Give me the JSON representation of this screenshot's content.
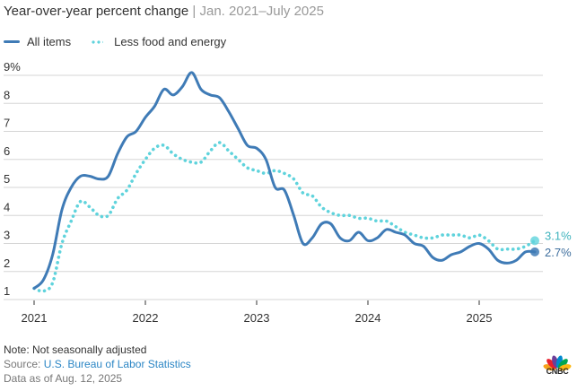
{
  "header": {
    "title": "Year-over-year percent change",
    "separator": "|",
    "subtitle": "Jan. 2021–July 2025"
  },
  "legend": [
    {
      "label": "All items",
      "style": "solid",
      "color": "#3f7bb6"
    },
    {
      "label": "Less food and energy",
      "style": "dotted",
      "color": "#5fd3dc"
    }
  ],
  "chart_data": {
    "type": "line",
    "title": "Year-over-year percent change | Jan. 2021–July 2025",
    "xlabel": "",
    "ylabel": "",
    "ylim": [
      1,
      9
    ],
    "yticks": [
      1,
      2,
      3,
      4,
      5,
      6,
      7,
      8,
      9
    ],
    "ytick_labels": [
      "1",
      "2",
      "3",
      "4",
      "5",
      "6",
      "7",
      "8",
      "9%"
    ],
    "xticks": [
      "2021",
      "2022",
      "2023",
      "2024",
      "2025"
    ],
    "x_start": "2021-01",
    "x_end": "2025-07",
    "grid": true,
    "legend_position": "top-left",
    "series": [
      {
        "name": "All items",
        "color": "#3f7bb6",
        "end_label": "2.7%",
        "values": [
          1.4,
          1.7,
          2.6,
          4.2,
          5.0,
          5.4,
          5.4,
          5.3,
          5.4,
          6.2,
          6.8,
          7.0,
          7.5,
          7.9,
          8.5,
          8.3,
          8.6,
          9.1,
          8.5,
          8.3,
          8.2,
          7.7,
          7.1,
          6.5,
          6.4,
          6.0,
          5.0,
          4.9,
          4.0,
          3.0,
          3.2,
          3.7,
          3.7,
          3.2,
          3.1,
          3.4,
          3.1,
          3.2,
          3.5,
          3.4,
          3.3,
          3.0,
          2.9,
          2.5,
          2.4,
          2.6,
          2.7,
          2.9,
          3.0,
          2.8,
          2.4,
          2.3,
          2.4,
          2.7,
          2.7
        ]
      },
      {
        "name": "Less food and energy",
        "color": "#5fd3dc",
        "end_label": "3.1%",
        "values": [
          1.4,
          1.3,
          1.6,
          3.0,
          3.8,
          4.5,
          4.3,
          4.0,
          4.0,
          4.6,
          4.9,
          5.5,
          6.0,
          6.4,
          6.5,
          6.2,
          6.0,
          5.9,
          5.9,
          6.3,
          6.6,
          6.3,
          6.0,
          5.7,
          5.6,
          5.5,
          5.6,
          5.5,
          5.3,
          4.8,
          4.7,
          4.3,
          4.1,
          4.0,
          4.0,
          3.9,
          3.9,
          3.8,
          3.8,
          3.6,
          3.4,
          3.3,
          3.2,
          3.2,
          3.3,
          3.3,
          3.3,
          3.2,
          3.3,
          3.1,
          2.8,
          2.8,
          2.8,
          2.9,
          3.1
        ]
      }
    ]
  },
  "footer": {
    "note": "Note: Not seasonally adjusted",
    "source_prefix": "Source: ",
    "source_link": "U.S. Bureau of Labor Statistics",
    "data_as_of": "Data as of Aug. 12, 2025"
  },
  "branding": {
    "logo_text": "CNBC",
    "logo_colors": [
      "#f6a21c",
      "#e8212e",
      "#6c3f99",
      "#0089cf",
      "#00a651",
      "#fcb813"
    ]
  }
}
